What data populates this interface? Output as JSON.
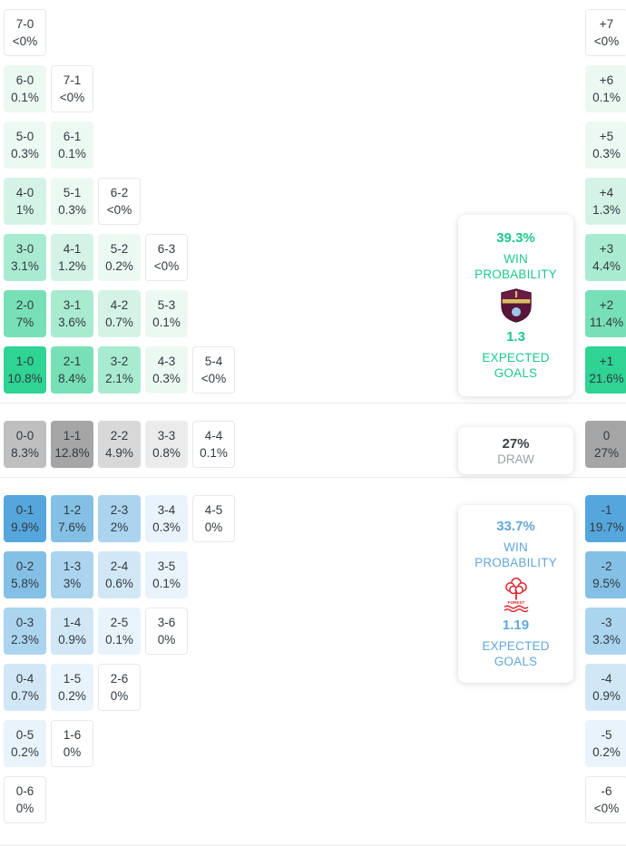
{
  "palette": {
    "home": [
      "#ffffff",
      "#ecf9f3",
      "#d4f3e6",
      "#a9ebd1",
      "#77e0b6",
      "#2fd394"
    ],
    "draw": [
      "#ffffff",
      "#ebebeb",
      "#d8d8d8",
      "#bfbfbf",
      "#a5a5a5",
      "#999999"
    ],
    "away": [
      "#ffffff",
      "#e9f3fb",
      "#d2e7f6",
      "#abd4ef",
      "#84c0e6",
      "#55a6dc"
    ],
    "cell_border": "#e8e8e8",
    "cell_text": "#333a40",
    "home_accent": "#1cc98a",
    "away_accent": "#61a7db",
    "draw_value": "#3a4047",
    "draw_label": "#9aa0a6",
    "burnley_claret": "#6C1D45",
    "forest_red": "#e0282f"
  },
  "chart_data": {
    "type": "heatmap",
    "title": "Correct score and goal-difference probability matrix",
    "summary": {
      "home_win_probability_pct": 39.3,
      "draw_probability_pct": 27,
      "away_win_probability_pct": 33.7,
      "home_expected_goals": 1.3,
      "away_expected_goals": 1.19
    },
    "home": {
      "rows": [
        {
          "cells": [
            {
              "score": "7-0",
              "pct": "<0%",
              "level": 0
            }
          ],
          "diff": {
            "score": "+7",
            "pct": "<0%",
            "level": 0
          }
        },
        {
          "cells": [
            {
              "score": "6-0",
              "pct": "0.1%",
              "level": 1
            },
            {
              "score": "7-1",
              "pct": "<0%",
              "level": 0
            }
          ],
          "diff": {
            "score": "+6",
            "pct": "0.1%",
            "level": 1
          }
        },
        {
          "cells": [
            {
              "score": "5-0",
              "pct": "0.3%",
              "level": 1
            },
            {
              "score": "6-1",
              "pct": "0.1%",
              "level": 1
            }
          ],
          "diff": {
            "score": "+5",
            "pct": "0.3%",
            "level": 1
          }
        },
        {
          "cells": [
            {
              "score": "4-0",
              "pct": "1%",
              "level": 2
            },
            {
              "score": "5-1",
              "pct": "0.3%",
              "level": 1
            },
            {
              "score": "6-2",
              "pct": "<0%",
              "level": 0
            }
          ],
          "diff": {
            "score": "+4",
            "pct": "1.3%",
            "level": 2
          }
        },
        {
          "cells": [
            {
              "score": "3-0",
              "pct": "3.1%",
              "level": 3
            },
            {
              "score": "4-1",
              "pct": "1.2%",
              "level": 2
            },
            {
              "score": "5-2",
              "pct": "0.2%",
              "level": 1
            },
            {
              "score": "6-3",
              "pct": "<0%",
              "level": 0
            }
          ],
          "diff": {
            "score": "+3",
            "pct": "4.4%",
            "level": 3
          }
        },
        {
          "cells": [
            {
              "score": "2-0",
              "pct": "7%",
              "level": 4
            },
            {
              "score": "3-1",
              "pct": "3.6%",
              "level": 3
            },
            {
              "score": "4-2",
              "pct": "0.7%",
              "level": 2
            },
            {
              "score": "5-3",
              "pct": "0.1%",
              "level": 1
            }
          ],
          "diff": {
            "score": "+2",
            "pct": "11.4%",
            "level": 4
          }
        },
        {
          "cells": [
            {
              "score": "1-0",
              "pct": "10.8%",
              "level": 5
            },
            {
              "score": "2-1",
              "pct": "8.4%",
              "level": 4
            },
            {
              "score": "3-2",
              "pct": "2.1%",
              "level": 3
            },
            {
              "score": "4-3",
              "pct": "0.3%",
              "level": 1
            },
            {
              "score": "5-4",
              "pct": "<0%",
              "level": 0
            }
          ],
          "diff": {
            "score": "+1",
            "pct": "21.6%",
            "level": 5
          }
        }
      ]
    },
    "draw": {
      "rows": [
        {
          "cells": [
            {
              "score": "0-0",
              "pct": "8.3%",
              "level": 3
            },
            {
              "score": "1-1",
              "pct": "12.8%",
              "level": 4
            },
            {
              "score": "2-2",
              "pct": "4.9%",
              "level": 2
            },
            {
              "score": "3-3",
              "pct": "0.8%",
              "level": 1
            },
            {
              "score": "4-4",
              "pct": "0.1%",
              "level": 0
            }
          ],
          "diff": {
            "score": "0",
            "pct": "27%",
            "level": 4
          }
        }
      ]
    },
    "away": {
      "rows": [
        {
          "cells": [
            {
              "score": "0-1",
              "pct": "9.9%",
              "level": 5
            },
            {
              "score": "1-2",
              "pct": "7.6%",
              "level": 4
            },
            {
              "score": "2-3",
              "pct": "2%",
              "level": 3
            },
            {
              "score": "3-4",
              "pct": "0.3%",
              "level": 1
            },
            {
              "score": "4-5",
              "pct": "0%",
              "level": 0
            }
          ],
          "diff": {
            "score": "-1",
            "pct": "19.7%",
            "level": 5
          }
        },
        {
          "cells": [
            {
              "score": "0-2",
              "pct": "5.8%",
              "level": 4
            },
            {
              "score": "1-3",
              "pct": "3%",
              "level": 3
            },
            {
              "score": "2-4",
              "pct": "0.6%",
              "level": 2
            },
            {
              "score": "3-5",
              "pct": "0.1%",
              "level": 1
            }
          ],
          "diff": {
            "score": "-2",
            "pct": "9.5%",
            "level": 4
          }
        },
        {
          "cells": [
            {
              "score": "0-3",
              "pct": "2.3%",
              "level": 3
            },
            {
              "score": "1-4",
              "pct": "0.9%",
              "level": 2
            },
            {
              "score": "2-5",
              "pct": "0.1%",
              "level": 1
            },
            {
              "score": "3-6",
              "pct": "0%",
              "level": 0
            }
          ],
          "diff": {
            "score": "-3",
            "pct": "3.3%",
            "level": 3
          }
        },
        {
          "cells": [
            {
              "score": "0-4",
              "pct": "0.7%",
              "level": 2
            },
            {
              "score": "1-5",
              "pct": "0.2%",
              "level": 1
            },
            {
              "score": "2-6",
              "pct": "0%",
              "level": 0
            }
          ],
          "diff": {
            "score": "-4",
            "pct": "0.9%",
            "level": 2
          }
        },
        {
          "cells": [
            {
              "score": "0-5",
              "pct": "0.2%",
              "level": 1
            },
            {
              "score": "1-6",
              "pct": "0%",
              "level": 0
            }
          ],
          "diff": {
            "score": "-5",
            "pct": "0.2%",
            "level": 1
          }
        },
        {
          "cells": [
            {
              "score": "0-6",
              "pct": "0%",
              "level": 0
            }
          ],
          "diff": {
            "score": "-6",
            "pct": "<0%",
            "level": 0
          }
        }
      ]
    }
  },
  "home_card": {
    "win_value": "39.3%",
    "win_label": "WIN PROBABILITY",
    "xg_value": "1.3",
    "xg_label": "EXPECTED GOALS",
    "crest_icon": "burnley-crest"
  },
  "draw_card": {
    "value": "27%",
    "label": "DRAW"
  },
  "away_card": {
    "win_value": "33.7%",
    "win_label": "WIN PROBABILITY",
    "xg_value": "1.19",
    "xg_label": "EXPECTED GOALS",
    "crest_icon": "nottingham-forest-crest"
  }
}
